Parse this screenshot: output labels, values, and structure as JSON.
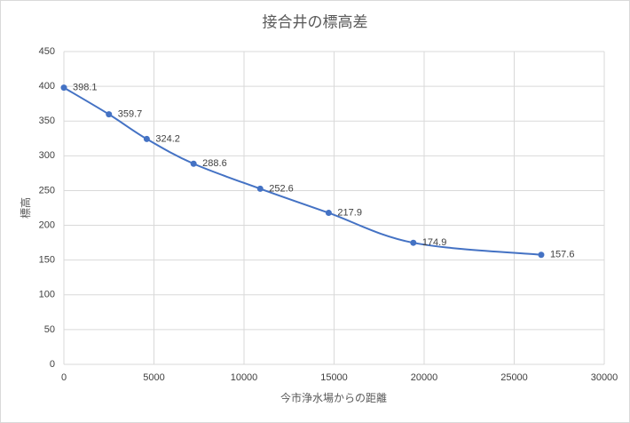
{
  "chart_data": {
    "type": "line",
    "title": "接合井の標高差",
    "x_label": "今市浄水場からの距離",
    "y_label": "標高",
    "x": [
      0,
      2500,
      4600,
      7200,
      10900,
      14700,
      19400,
      26500
    ],
    "series": [
      {
        "name": "標高",
        "color": "#4472c4",
        "values": [
          398.1,
          359.7,
          324.2,
          288.6,
          252.6,
          217.9,
          174.9,
          157.6
        ]
      }
    ],
    "xlim": [
      0,
      30000
    ],
    "xticks": [
      0,
      5000,
      10000,
      15000,
      20000,
      25000,
      30000
    ],
    "ylim": [
      0,
      450
    ],
    "yticks": [
      0,
      50,
      100,
      150,
      200,
      250,
      300,
      350,
      400,
      450
    ],
    "grid": true,
    "smooth": true
  }
}
